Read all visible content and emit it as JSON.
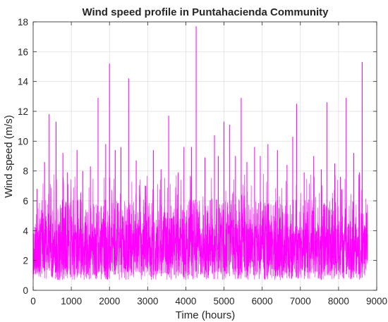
{
  "chart_data": {
    "type": "line",
    "title": "Wind speed profile in Puntahacienda Community",
    "xlabel": "Time (hours)",
    "ylabel": "Wind speed (m/s)",
    "xlim": [
      0,
      9000
    ],
    "ylim": [
      0,
      18
    ],
    "xticks": [
      "0",
      "1000",
      "2000",
      "3000",
      "4000",
      "5000",
      "6000",
      "7000",
      "8000",
      "9000"
    ],
    "yticks": [
      "0",
      "2",
      "4",
      "6",
      "8",
      "10",
      "12",
      "14",
      "16",
      "18"
    ],
    "grid": true,
    "series": [
      {
        "color": "#ff00ff",
        "x_range": [
          0,
          8760
        ],
        "typical_range": [
          0.7,
          4.5
        ],
        "peaks": [
          {
            "x": 100,
            "y": 6.8
          },
          {
            "x": 300,
            "y": 8.6
          },
          {
            "x": 420,
            "y": 11.8
          },
          {
            "x": 600,
            "y": 11.3
          },
          {
            "x": 780,
            "y": 9.2
          },
          {
            "x": 900,
            "y": 7.9
          },
          {
            "x": 1150,
            "y": 9.4
          },
          {
            "x": 1300,
            "y": 8.0
          },
          {
            "x": 1500,
            "y": 8.3
          },
          {
            "x": 1700,
            "y": 12.9
          },
          {
            "x": 1900,
            "y": 9.8
          },
          {
            "x": 2000,
            "y": 15.2
          },
          {
            "x": 2150,
            "y": 9.4
          },
          {
            "x": 2300,
            "y": 9.6
          },
          {
            "x": 2500,
            "y": 14.2
          },
          {
            "x": 2700,
            "y": 8.7
          },
          {
            "x": 2950,
            "y": 7.0
          },
          {
            "x": 3150,
            "y": 9.4
          },
          {
            "x": 3350,
            "y": 8.1
          },
          {
            "x": 3550,
            "y": 11.7
          },
          {
            "x": 3800,
            "y": 7.9
          },
          {
            "x": 3950,
            "y": 9.6
          },
          {
            "x": 4150,
            "y": 9.6
          },
          {
            "x": 4270,
            "y": 17.7
          },
          {
            "x": 4500,
            "y": 8.9
          },
          {
            "x": 4750,
            "y": 10.4
          },
          {
            "x": 4850,
            "y": 9.0
          },
          {
            "x": 5000,
            "y": 11.3
          },
          {
            "x": 5150,
            "y": 11.1
          },
          {
            "x": 5300,
            "y": 9.0
          },
          {
            "x": 5450,
            "y": 12.9
          },
          {
            "x": 5600,
            "y": 8.6
          },
          {
            "x": 5800,
            "y": 9.6
          },
          {
            "x": 5950,
            "y": 9.0
          },
          {
            "x": 6150,
            "y": 9.8
          },
          {
            "x": 6400,
            "y": 9.4
          },
          {
            "x": 6650,
            "y": 8.4
          },
          {
            "x": 6800,
            "y": 10.3
          },
          {
            "x": 6900,
            "y": 12.5
          },
          {
            "x": 7100,
            "y": 7.9
          },
          {
            "x": 7350,
            "y": 9.0
          },
          {
            "x": 7550,
            "y": 8.1
          },
          {
            "x": 7700,
            "y": 12.6
          },
          {
            "x": 7900,
            "y": 8.5
          },
          {
            "x": 8050,
            "y": 7.6
          },
          {
            "x": 8200,
            "y": 12.9
          },
          {
            "x": 8400,
            "y": 9.2
          },
          {
            "x": 8550,
            "y": 7.9
          },
          {
            "x": 8620,
            "y": 15.3
          }
        ]
      }
    ]
  }
}
